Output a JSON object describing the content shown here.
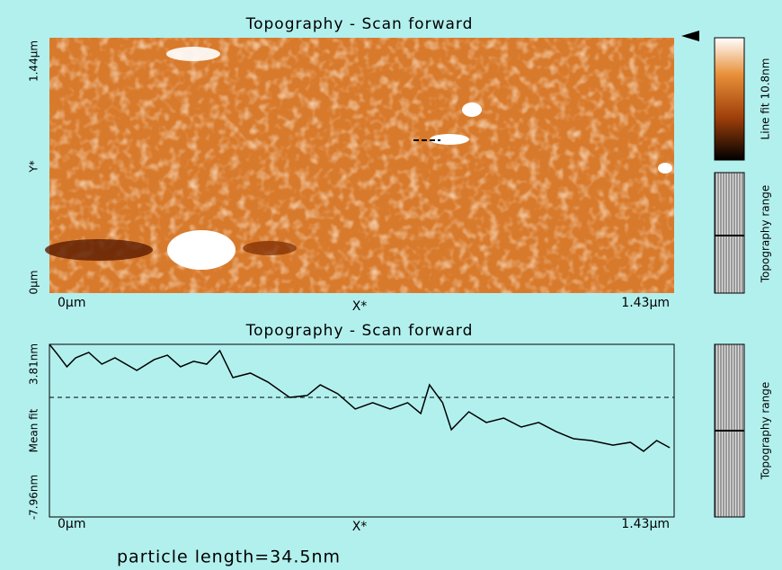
{
  "image": {
    "title": "Topography - Scan forward",
    "y_top_label": "1.44µm",
    "y_axis_label": "Y*",
    "y_bottom_label": "0µm",
    "x_left_label": "0µm",
    "x_axis_label": "X*",
    "x_right_label": "1.43µm",
    "colorbar_label": "Line fit 10.8nm",
    "range_label": "Topography range"
  },
  "chart_data": {
    "type": "line",
    "title": "Topography - Scan forward",
    "x_label": "X*",
    "y_label": "Mean fit",
    "range_label": "Topography range",
    "xlim": [
      0,
      1.43
    ],
    "xticks": [
      {
        "value": 0,
        "label": "0µm"
      },
      {
        "value": 1.43,
        "label": "1.43µm"
      }
    ],
    "ylim": [
      -7.96,
      3.81
    ],
    "yticks": [
      {
        "value": 3.81,
        "label": "3.81nm"
      },
      {
        "value": -7.96,
        "label": "-7.96nm"
      }
    ],
    "series": [
      {
        "color": "#000000",
        "x": [
          0,
          0.02,
          0.04,
          0.06,
          0.09,
          0.12,
          0.15,
          0.2,
          0.24,
          0.27,
          0.3,
          0.33,
          0.36,
          0.39,
          0.42,
          0.46,
          0.5,
          0.55,
          0.59,
          0.62,
          0.66,
          0.7,
          0.74,
          0.78,
          0.82,
          0.85,
          0.87,
          0.9,
          0.92,
          0.96,
          1.0,
          1.04,
          1.08,
          1.12,
          1.16,
          1.2,
          1.24,
          1.29,
          1.33,
          1.36,
          1.39,
          1.42
        ],
        "values": [
          3.81,
          3.07,
          2.28,
          2.89,
          3.26,
          2.46,
          2.89,
          2.03,
          2.77,
          3.07,
          2.28,
          2.65,
          2.46,
          3.38,
          1.54,
          1.85,
          1.24,
          0.19,
          0.32,
          1.05,
          0.44,
          -0.6,
          -0.17,
          -0.6,
          -0.17,
          -0.91,
          1.05,
          -0.17,
          -2.01,
          -0.79,
          -1.52,
          -1.22,
          -1.83,
          -1.52,
          -2.14,
          -2.63,
          -2.75,
          -3.06,
          -2.87,
          -3.48,
          -2.75,
          -3.24
        ]
      }
    ]
  },
  "footer": {
    "text": "particle length=34.5nm"
  }
}
